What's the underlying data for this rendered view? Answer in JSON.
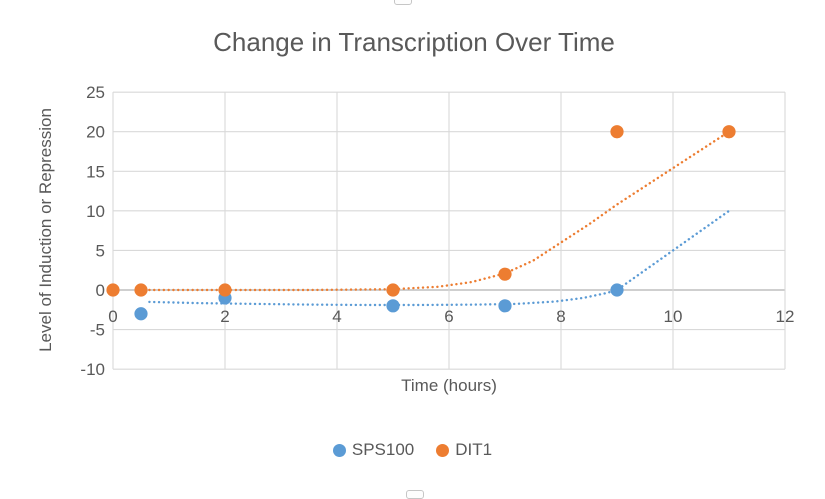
{
  "chart_data": {
    "type": "scatter",
    "title": "Change in Transcription Over Time",
    "xlabel": "Time (hours)",
    "ylabel": "Level of Induction or Repression",
    "xlim": [
      0,
      12
    ],
    "ylim": [
      -10,
      25
    ],
    "x_ticks": [
      0,
      2,
      4,
      6,
      8,
      10,
      12
    ],
    "y_ticks": [
      25,
      20,
      15,
      10,
      5,
      0,
      -5,
      -10
    ],
    "grid": true,
    "legend_position": "bottom",
    "colors": {
      "gridline": "#d9d9d9",
      "zero_axis": "#bfbfbf",
      "text": "#595959"
    },
    "series": [
      {
        "name": "SPS100",
        "color": "#5B9BD5",
        "marker": "circle",
        "line_style": "dotted",
        "points": [
          [
            0.5,
            -3
          ],
          [
            2,
            -1
          ],
          [
            5,
            -2
          ],
          [
            7,
            -2
          ],
          [
            9,
            0
          ]
        ],
        "trend_path": [
          [
            0.65,
            -1.5
          ],
          [
            1.5,
            -1.65
          ],
          [
            2.5,
            -1.75
          ],
          [
            3.5,
            -1.85
          ],
          [
            4.5,
            -1.9
          ],
          [
            5.5,
            -1.9
          ],
          [
            6.5,
            -1.85
          ],
          [
            7.2,
            -1.75
          ],
          [
            7.9,
            -1.45
          ],
          [
            8.4,
            -1.0
          ],
          [
            8.8,
            -0.4
          ],
          [
            9,
            0
          ],
          [
            11,
            10
          ]
        ]
      },
      {
        "name": "DIT1",
        "color": "#ED7D31",
        "marker": "circle",
        "line_style": "dotted",
        "points": [
          [
            0,
            0
          ],
          [
            0.5,
            0
          ],
          [
            2,
            0
          ],
          [
            5,
            0
          ],
          [
            7,
            2
          ],
          [
            9,
            20
          ],
          [
            11,
            20
          ]
        ],
        "trend_path": [
          [
            0.65,
            0
          ],
          [
            2,
            0
          ],
          [
            3.5,
            0
          ],
          [
            5,
            0.1
          ],
          [
            5.8,
            0.4
          ],
          [
            6.4,
            1.0
          ],
          [
            7,
            2.1
          ],
          [
            7.5,
            3.7
          ],
          [
            8,
            6.0
          ],
          [
            8.5,
            8.3
          ],
          [
            9,
            10.8
          ],
          [
            9.5,
            13.1
          ],
          [
            10,
            15.4
          ],
          [
            10.5,
            17.7
          ],
          [
            11,
            20
          ]
        ]
      }
    ]
  }
}
